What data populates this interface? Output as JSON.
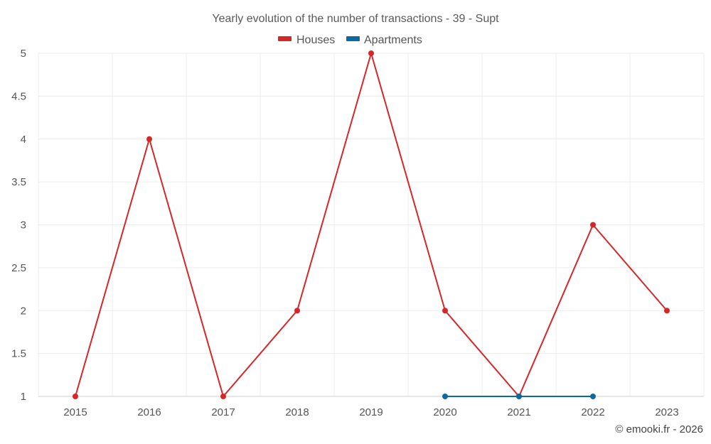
{
  "chart_data": {
    "type": "line",
    "title": "Yearly evolution of the number of transactions - 39 - Supt",
    "categories": [
      "2015",
      "2016",
      "2017",
      "2018",
      "2019",
      "2020",
      "2021",
      "2022",
      "2023"
    ],
    "series": [
      {
        "name": "Houses",
        "color": "#d62728",
        "values": [
          1,
          4,
          1,
          2,
          5,
          2,
          1,
          3,
          2
        ]
      },
      {
        "name": "Apartments",
        "color": "#0b6aa2",
        "values": [
          null,
          null,
          null,
          null,
          null,
          1,
          1,
          1,
          null
        ]
      }
    ],
    "ylim": [
      1,
      5
    ],
    "yticks": [
      "1",
      "1.5",
      "2",
      "2.5",
      "3",
      "3.5",
      "4",
      "4.5",
      "5"
    ],
    "xlabel": "",
    "ylabel": "",
    "grid": true,
    "legend_position": "top-center"
  },
  "credit": "© emooki.fr - 2026"
}
